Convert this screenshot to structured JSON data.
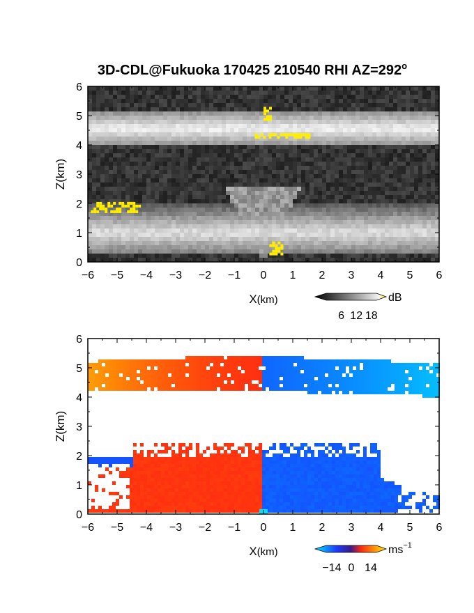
{
  "chart_data": [
    {
      "type": "heatmap",
      "panel": "top",
      "title": "3D-CDL@Fukuoka 170425 210540 RHI AZ=292",
      "title_superscript": "o",
      "xlabel": "X",
      "xlabel_unit": "(km)",
      "ylabel": "Z(km)",
      "xlim": [
        -6,
        6
      ],
      "ylim": [
        0,
        6
      ],
      "x_ticks": [
        "-6",
        "-5",
        "-4",
        "-3",
        "-2",
        "-1",
        "0",
        "1",
        "2",
        "3",
        "4",
        "5",
        "6"
      ],
      "y_ticks": [
        "0",
        "1",
        "2",
        "3",
        "4",
        "5",
        "6"
      ],
      "colorbar": {
        "unit": "dB",
        "ticks": [
          "6",
          "12",
          "18"
        ],
        "range": [
          0,
          20
        ]
      },
      "layers": [
        {
          "feature": "upper cloud layer",
          "z_bottom": 4.1,
          "z_top": 5.2
        },
        {
          "feature": "lower cloud layer",
          "z_bottom": 0.3,
          "z_top": 2.0
        }
      ],
      "saturated_regions": [
        {
          "x": [
            -5.9,
            -4.2
          ],
          "z": [
            1.7,
            2.05
          ]
        },
        {
          "x": [
            -0.3,
            1.6
          ],
          "z": [
            4.25,
            4.4
          ]
        },
        {
          "x": [
            0.0,
            0.2
          ],
          "z": [
            4.9,
            5.3
          ]
        },
        {
          "x": [
            0.2,
            0.6
          ],
          "z": [
            0.3,
            0.7
          ]
        }
      ],
      "colors": {
        "background": "#2a2a2a",
        "cloud": "#d8d8d8",
        "saturated": "#ffee00"
      }
    },
    {
      "type": "heatmap",
      "panel": "bottom",
      "xlabel": "X",
      "xlabel_unit": "(km)",
      "ylabel": "Z(km)",
      "xlim": [
        -6,
        6
      ],
      "ylim": [
        0,
        6
      ],
      "x_ticks": [
        "-6",
        "-5",
        "-4",
        "-3",
        "-2",
        "-1",
        "0",
        "1",
        "2",
        "3",
        "4",
        "5",
        "6"
      ],
      "y_ticks": [
        "0",
        "1",
        "2",
        "3",
        "4",
        "5",
        "6"
      ],
      "colorbar": {
        "unit": "ms",
        "unit_superscript": "−1",
        "ticks": [
          "−14",
          "0",
          "14"
        ],
        "range": [
          -18,
          18
        ]
      },
      "layers": [
        {
          "feature": "upper layer",
          "z_bottom": 4.2,
          "z_top": 5.4,
          "velocity_x_neg6": 12,
          "velocity_x_0_left": 3,
          "velocity_x_0_right": -8,
          "velocity_x_6": -14
        },
        {
          "feature": "lower layer",
          "z_bottom": 0.05,
          "z_top": 2.4,
          "velocity_left": 4,
          "velocity_right": -7
        }
      ],
      "colors": {
        "positive": "#ff3010",
        "negative": "#1a3cff",
        "max_positive": "#ffee00",
        "max_negative": "#00e0ff"
      }
    }
  ]
}
